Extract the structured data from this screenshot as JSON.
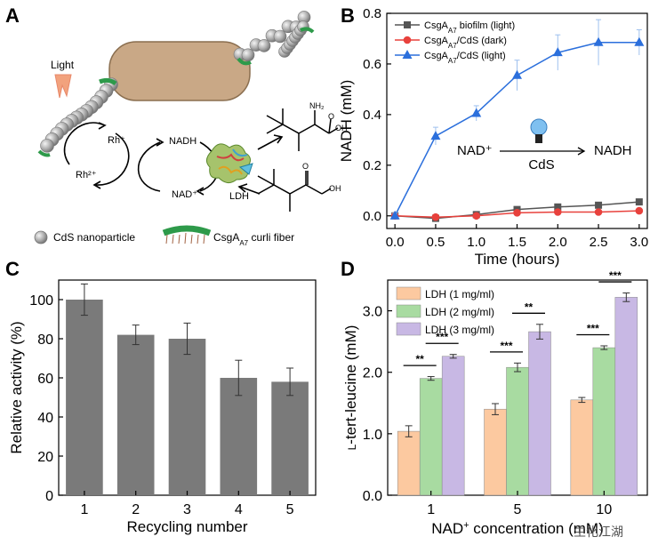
{
  "panels": {
    "A": {
      "letter": "A",
      "light": "Light",
      "rh_plus": "Rh⁺",
      "rh_2plus": "Rh²⁺",
      "nadh": "NADH",
      "nad": "NAD⁺",
      "ldh": "LDH",
      "legend_cds": "CdS nanoparticle",
      "legend_fiber_pre": "CsgA",
      "legend_fiber_sub": "A7",
      "legend_fiber_post": " curli fiber"
    },
    "B": {
      "letter": "B"
    },
    "C": {
      "letter": "C"
    },
    "D": {
      "letter": "D"
    }
  },
  "watermark": "生化江湖",
  "colors": {
    "gray": "#555555",
    "red": "#e8413c",
    "blue": "#2b6fdc",
    "bar_gray": "#7a7a7a",
    "orange": "#fcc9a0",
    "green": "#a8dba1",
    "purple": "#c8b8e4"
  },
  "chart_data": [
    {
      "id": "B",
      "type": "line",
      "title": "",
      "xlabel": "Time (hours)",
      "ylabel": "NADH (mM)",
      "xlim": [
        -0.1,
        3.1
      ],
      "ylim": [
        -0.05,
        0.8
      ],
      "xticks": [
        0.0,
        0.5,
        1.0,
        1.5,
        2.0,
        2.5,
        3.0
      ],
      "yticks": [
        0.0,
        0.2,
        0.4,
        0.6,
        0.8
      ],
      "x": [
        0.0,
        0.5,
        1.0,
        1.5,
        2.0,
        2.5,
        3.0
      ],
      "series": [
        {
          "name_pre": "CsgA",
          "name_sub": "A7",
          "name_post": " biofilm (light)",
          "marker": "square",
          "color": "#555555",
          "values": [
            0.0,
            -0.01,
            0.005,
            0.025,
            0.035,
            0.042,
            0.055
          ],
          "err": [
            0.005,
            0.005,
            0.005,
            0.005,
            0.005,
            0.005,
            0.005
          ]
        },
        {
          "name_pre": "CsgA",
          "name_sub": "A7",
          "name_post": "/CdS (dark)",
          "marker": "circle",
          "color": "#e8413c",
          "values": [
            0.0,
            -0.005,
            0.0,
            0.012,
            0.015,
            0.015,
            0.02
          ],
          "err": [
            0.005,
            0.005,
            0.005,
            0.005,
            0.005,
            0.005,
            0.005
          ]
        },
        {
          "name_pre": "CsgA",
          "name_sub": "A7",
          "name_post": "/CdS (light)",
          "marker": "triangle",
          "color": "#2b6fdc",
          "values": [
            0.0,
            0.315,
            0.405,
            0.555,
            0.645,
            0.685,
            0.685
          ],
          "err": [
            0.01,
            0.035,
            0.03,
            0.06,
            0.07,
            0.09,
            0.05
          ]
        }
      ],
      "annotation": {
        "left": "NAD⁺",
        "arrow_label": "CdS",
        "right": "NADH"
      }
    },
    {
      "id": "C",
      "type": "bar",
      "title": "",
      "xlabel": "Recycling number",
      "ylabel": "Relative activity (%)",
      "ylim": [
        0,
        110
      ],
      "yticks": [
        0,
        20,
        40,
        60,
        80,
        100
      ],
      "categories": [
        "1",
        "2",
        "3",
        "4",
        "5"
      ],
      "values": [
        100,
        82,
        80,
        60,
        58
      ],
      "err": [
        8,
        5,
        8,
        9,
        7
      ],
      "color": "#7a7a7a"
    },
    {
      "id": "D",
      "type": "bar",
      "title": "",
      "xlabel_pre": "NAD",
      "xlabel_sup": "+",
      "xlabel_post": " concentration (mM)",
      "ylabel": "L-tert-leucine (mM)",
      "ylabel_small": "L",
      "ylabel_rest": "-tert-leucine (mM)",
      "ylim": [
        0,
        3.5
      ],
      "yticks": [
        "0.0",
        "1.0",
        "2.0",
        "3.0"
      ],
      "categories": [
        "1",
        "5",
        "10"
      ],
      "series": [
        {
          "name": "LDH (1 mg/ml)",
          "color": "#fcc9a0",
          "values": [
            1.04,
            1.4,
            1.55
          ],
          "err": [
            0.09,
            0.09,
            0.04
          ]
        },
        {
          "name": "LDH (2 mg/ml)",
          "color": "#a8dba1",
          "values": [
            1.9,
            2.08,
            2.4
          ],
          "err": [
            0.03,
            0.07,
            0.03
          ]
        },
        {
          "name": "LDH (3 mg/ml)",
          "color": "#c8b8e4",
          "values": [
            2.26,
            2.66,
            3.22
          ],
          "err": [
            0.03,
            0.12,
            0.07
          ]
        }
      ],
      "significance": [
        {
          "group": 0,
          "from": 0,
          "to": 1,
          "label": "**"
        },
        {
          "group": 0,
          "from": 1,
          "to": 2,
          "label": "***"
        },
        {
          "group": 1,
          "from": 0,
          "to": 1,
          "label": "***"
        },
        {
          "group": 1,
          "from": 1,
          "to": 2,
          "label": "**"
        },
        {
          "group": 2,
          "from": 0,
          "to": 1,
          "label": "***"
        },
        {
          "group": 2,
          "from": 1,
          "to": 2,
          "label": "***"
        }
      ]
    }
  ]
}
